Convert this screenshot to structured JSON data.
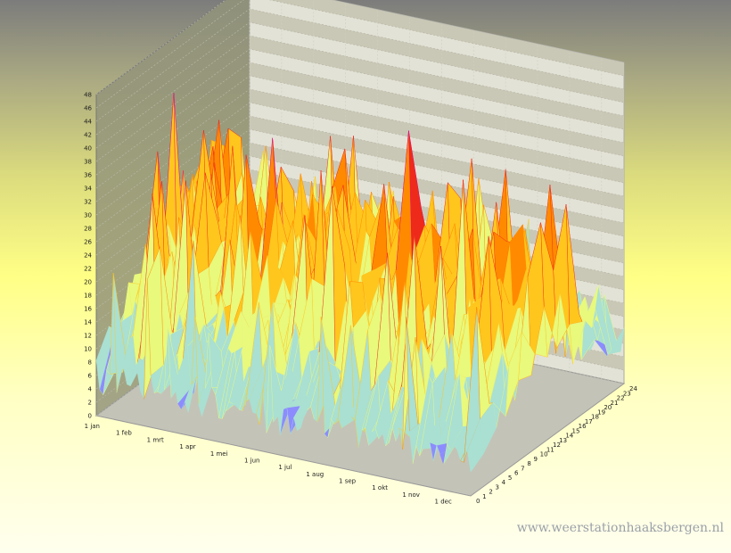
{
  "chart_data": {
    "type": "surface3d",
    "title": "",
    "xlabel": "",
    "ylabel": "",
    "zlabel": "",
    "x_ticks": [
      "1 jan",
      "1 feb",
      "1 mrt",
      "1 apr",
      "1 mei",
      "1 jun",
      "1 jul",
      "1 aug",
      "1 sep",
      "1 okt",
      "1 nov",
      "1 dec"
    ],
    "y_ticks": [
      "0",
      "1",
      "2",
      "3",
      "4",
      "5",
      "6",
      "7",
      "8",
      "9",
      "10",
      "11",
      "12",
      "13",
      "14",
      "15",
      "16",
      "17",
      "18",
      "19",
      "20",
      "21",
      "22",
      "23",
      "24"
    ],
    "z_ticks": [
      "0",
      "2",
      "4",
      "6",
      "8",
      "10",
      "12",
      "14",
      "16",
      "18",
      "20",
      "22",
      "24",
      "26",
      "28",
      "30",
      "32",
      "34",
      "36",
      "38",
      "40",
      "42",
      "44",
      "46",
      "48"
    ],
    "zlim": [
      0,
      48
    ],
    "ylim": [
      0,
      24
    ],
    "peaks": [
      {
        "date": "1 feb",
        "value": 48
      },
      {
        "date": "1 jul",
        "value": 46
      },
      {
        "date": "15 jul",
        "value": 45
      },
      {
        "date": "1 nov",
        "value": 40
      },
      {
        "date": "1 dec",
        "value": 37
      }
    ],
    "color_bands": [
      {
        "min": 0,
        "max": 6,
        "color": "#8c8cff"
      },
      {
        "min": 6,
        "max": 12,
        "color": "#a9e0d2"
      },
      {
        "min": 12,
        "max": 18,
        "color": "#e8f97c"
      },
      {
        "min": 18,
        "max": 24,
        "color": "#ffc61e"
      },
      {
        "min": 24,
        "max": 30,
        "color": "#ff8a00"
      },
      {
        "min": 30,
        "max": 38,
        "color": "#ee2a1a"
      },
      {
        "min": 38,
        "max": 48,
        "color": "#dd0a78"
      }
    ],
    "grid": true,
    "legend": "none"
  },
  "watermark": "www.weerstationhaaksbergen.nl"
}
